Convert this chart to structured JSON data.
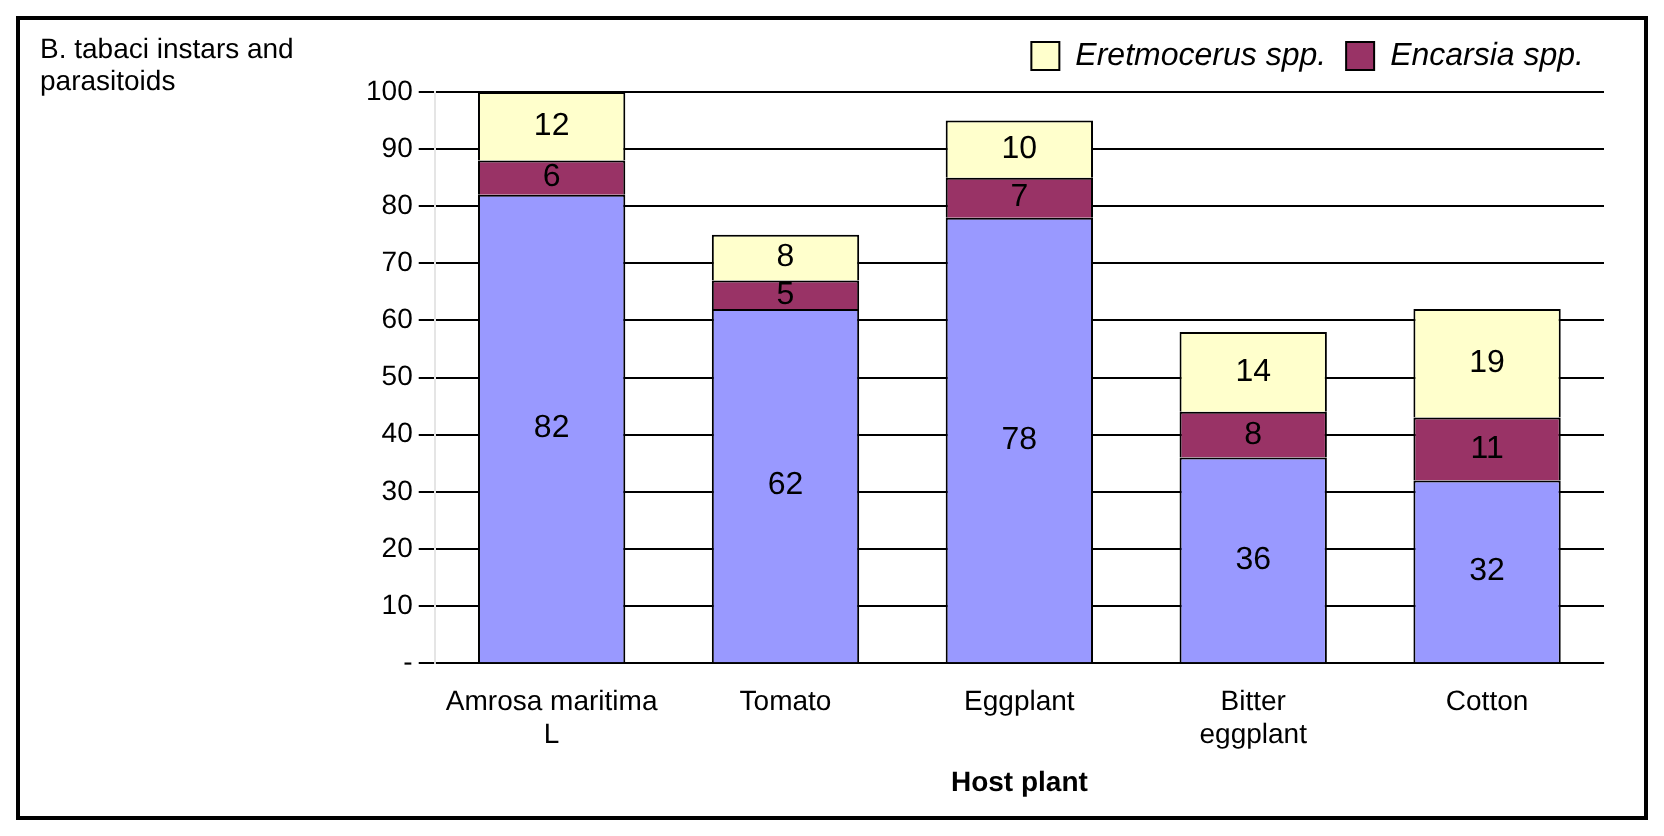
{
  "chart_data": {
    "type": "bar",
    "stacked": true,
    "ylabel": "B. tabaci instars and parasitoids",
    "xlabel": "Host plant",
    "categories": [
      "Amrosa maritima L",
      "Tomato",
      "Eggplant",
      "Bitter eggplant",
      "Cotton"
    ],
    "series": [
      {
        "color": "#9999ff",
        "values": [
          82,
          62,
          78,
          36,
          32
        ]
      },
      {
        "name": "Encarsia spp.",
        "color": "#993366",
        "values": [
          6,
          5,
          7,
          8,
          11
        ]
      },
      {
        "name": "Eretmocerus spp.",
        "color": "#ffffcc",
        "values": [
          12,
          8,
          10,
          14,
          19
        ]
      }
    ],
    "ylim": [
      0,
      100
    ],
    "yticks": [
      {
        "value": 0,
        "label": "-"
      },
      10,
      20,
      30,
      40,
      50,
      60,
      70,
      80,
      90,
      100
    ],
    "grid": "y",
    "legend": "top right",
    "data_labels": true
  }
}
